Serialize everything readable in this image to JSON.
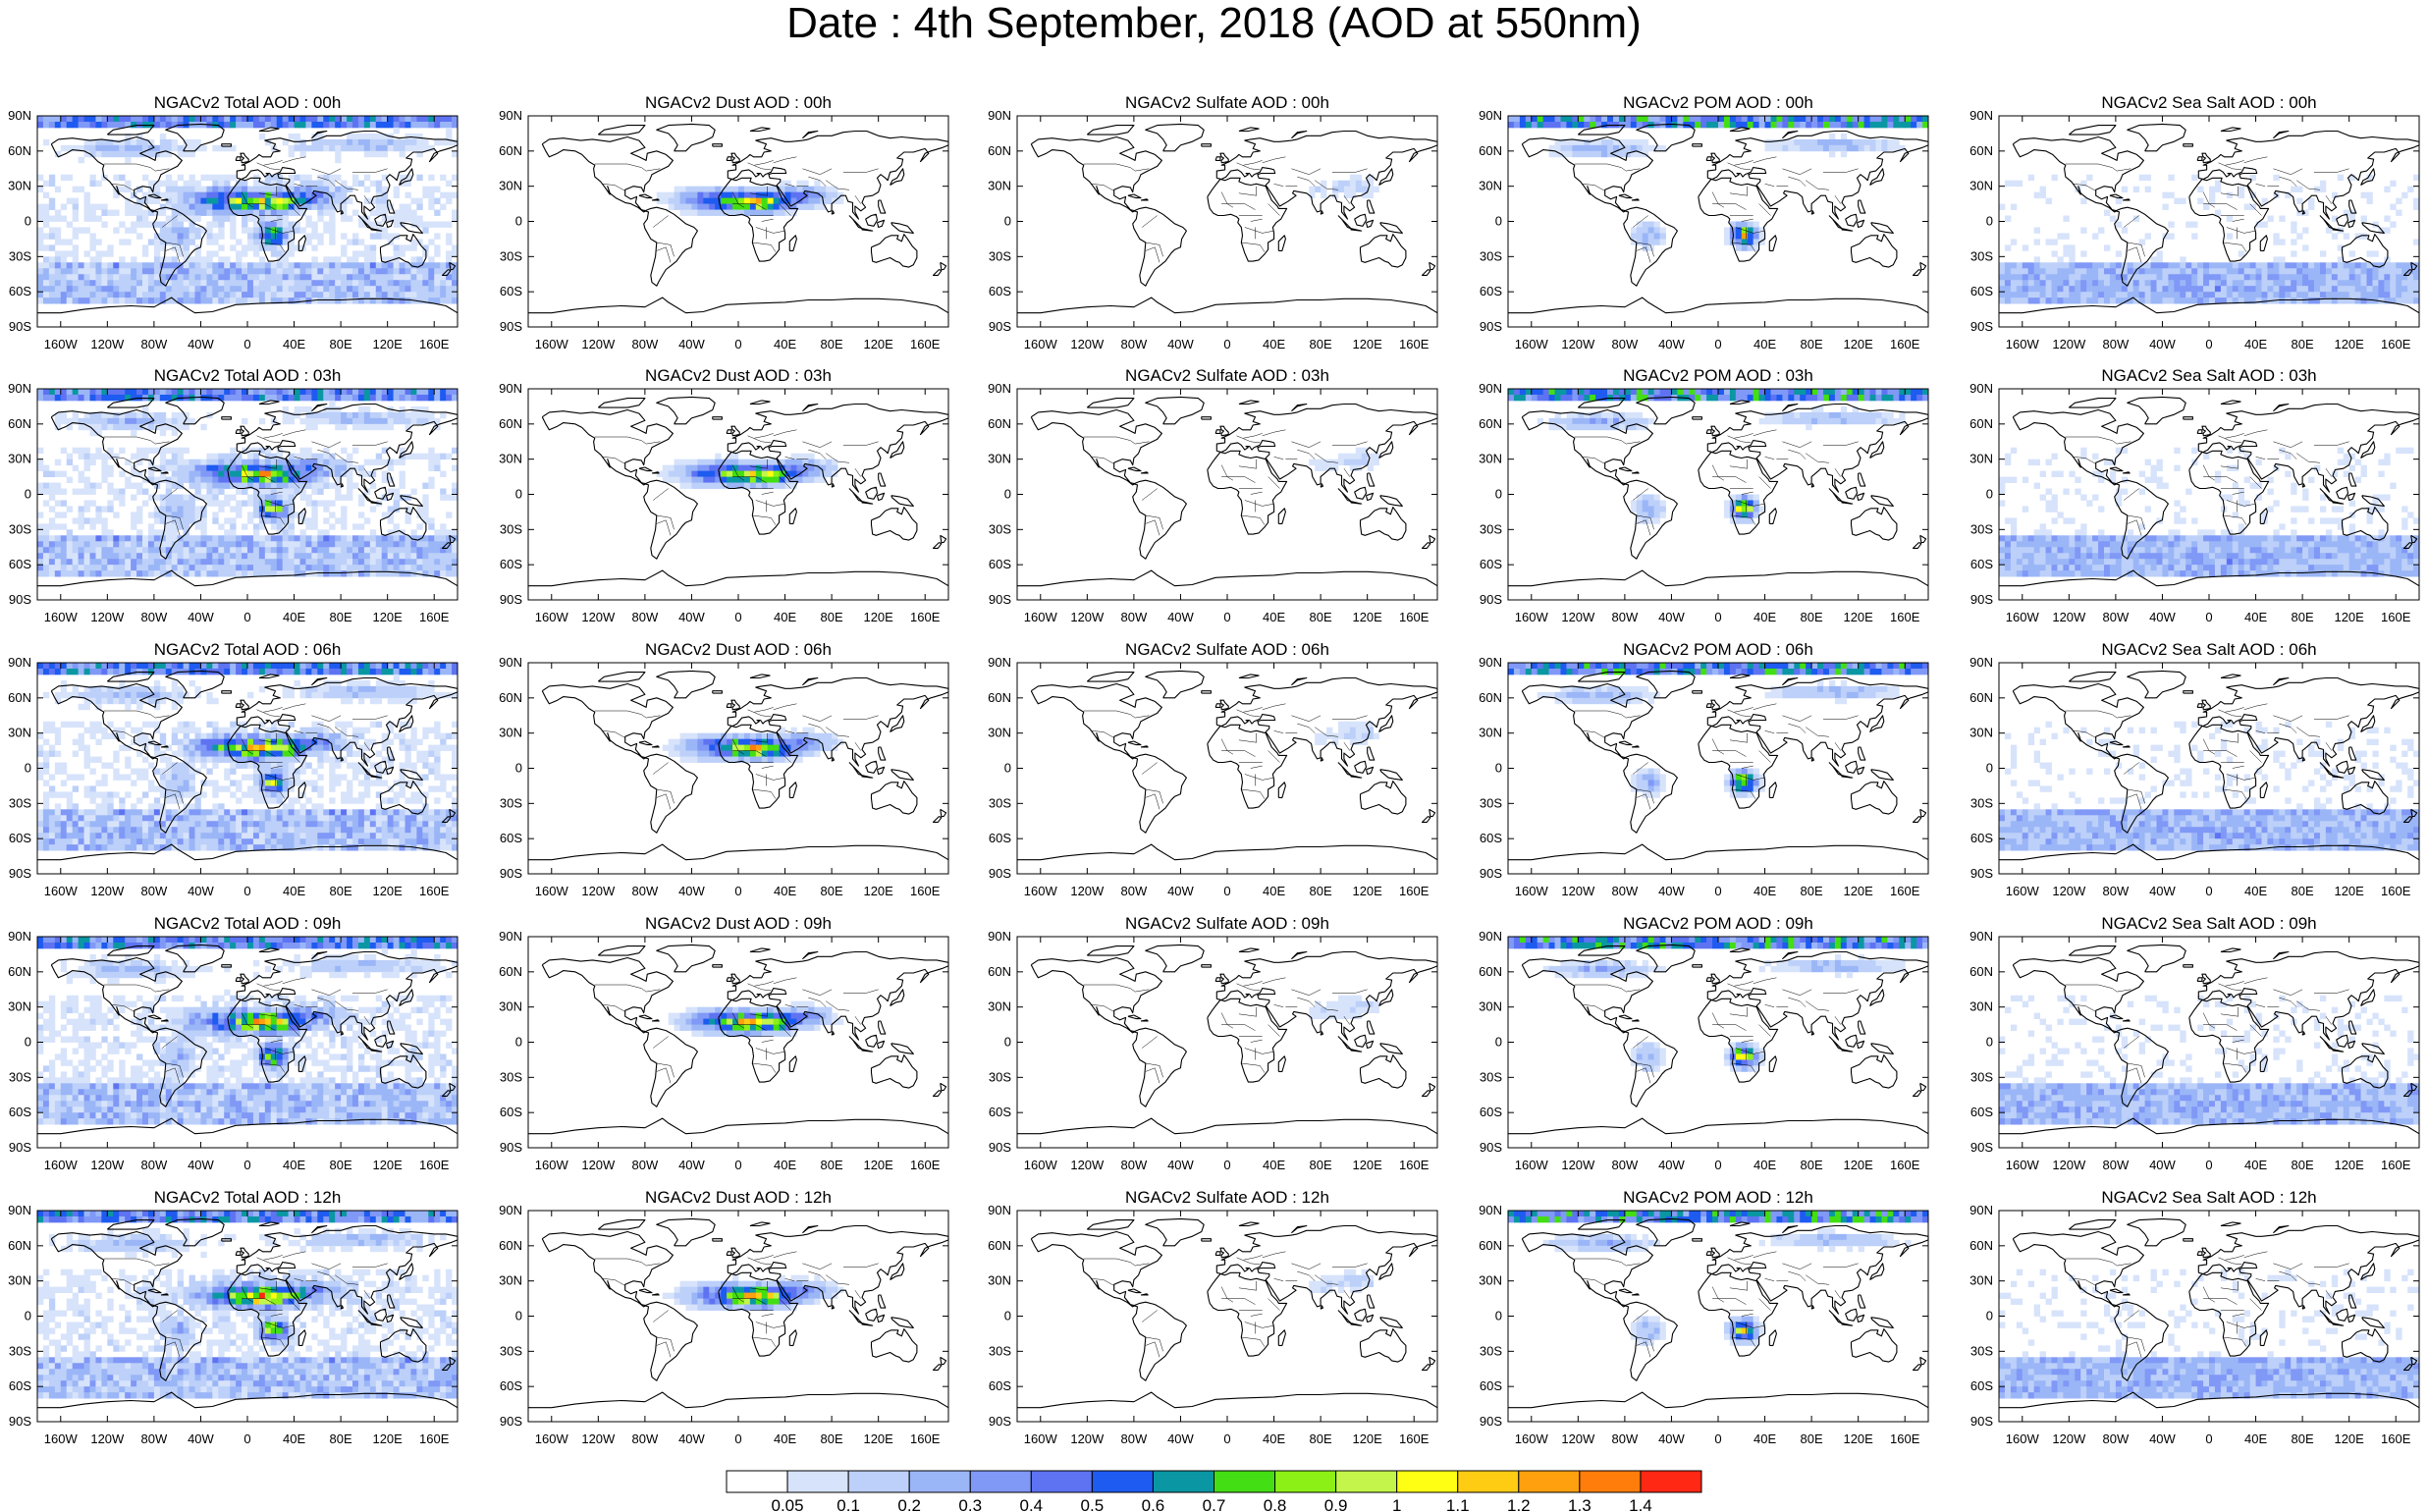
{
  "title": "Date : 4th September, 2018 (AOD at 550nm)",
  "species": [
    {
      "key": "total",
      "name": "Total"
    },
    {
      "key": "dust",
      "name": "Dust"
    },
    {
      "key": "sulfate",
      "name": "Sulfate"
    },
    {
      "key": "pom",
      "name": "POM"
    },
    {
      "key": "seasalt",
      "name": "Sea Salt"
    }
  ],
  "times": [
    "00h",
    "03h",
    "06h",
    "09h",
    "12h"
  ],
  "panel_titles": [
    [
      "NGACv2 Total AOD : 00h",
      "NGACv2 Dust AOD : 00h",
      "NGACv2 Sulfate AOD : 00h",
      "NGACv2 POM AOD : 00h",
      "NGACv2 Sea Salt AOD : 00h"
    ],
    [
      "NGACv2 Total AOD : 03h",
      "NGACv2 Dust AOD : 03h",
      "NGACv2 Sulfate AOD : 03h",
      "NGACv2 POM AOD : 03h",
      "NGACv2 Sea Salt AOD : 03h"
    ],
    [
      "NGACv2 Total AOD : 06h",
      "NGACv2 Dust AOD : 06h",
      "NGACv2 Sulfate AOD : 06h",
      "NGACv2 POM AOD : 06h",
      "NGACv2 Sea Salt AOD : 06h"
    ],
    [
      "NGACv2 Total AOD : 09h",
      "NGACv2 Dust AOD : 09h",
      "NGACv2 Sulfate AOD : 09h",
      "NGACv2 POM AOD : 09h",
      "NGACv2 Sea Salt  AOD : 09h"
    ],
    [
      "NGACv2 Total AOD : 12h",
      "NGACv2 Dust AOD : 12h",
      "NGACv2 Sulfate AOD : 12h",
      "NGACv2 POM  AOD : 12h",
      "NGACv2 Sea Salt AOD : 12h"
    ]
  ],
  "lat_labels": [
    "90N",
    "60N",
    "30N",
    "0",
    "30S",
    "60S",
    "90S"
  ],
  "lon_labels": [
    "160W",
    "120W",
    "80W",
    "40W",
    "0",
    "40E",
    "80E",
    "120E",
    "160E"
  ],
  "lon_values": [
    -160,
    -120,
    -80,
    -40,
    0,
    40,
    80,
    120,
    160
  ],
  "lat_values": [
    90,
    60,
    30,
    0,
    -30,
    -60,
    -90
  ],
  "colorbar": {
    "levels": [
      "0.05",
      "0.1",
      "0.2",
      "0.3",
      "0.4",
      "0.5",
      "0.6",
      "0.7",
      "0.8",
      "0.9",
      "1",
      "1.1",
      "1.2",
      "1.3",
      "1.4"
    ],
    "colors": [
      "#ffffff",
      "#d7e3fb",
      "#bcd0f9",
      "#9bb6f7",
      "#8098f6",
      "#5e73f2",
      "#1e5bf0",
      "#0a97a3",
      "#43de13",
      "#8cf017",
      "#c3f54a",
      "#ffff14",
      "#ffcc14",
      "#ffa00e",
      "#ff7d0a",
      "#ff2814"
    ]
  },
  "colors": {
    "low_aod": "#d7e3fb",
    "mid_aod": "#9bb6f7",
    "high_aod": "#5e73f2",
    "very_high_aod": "#43de13",
    "extreme_aod": "#ffcc14"
  }
}
